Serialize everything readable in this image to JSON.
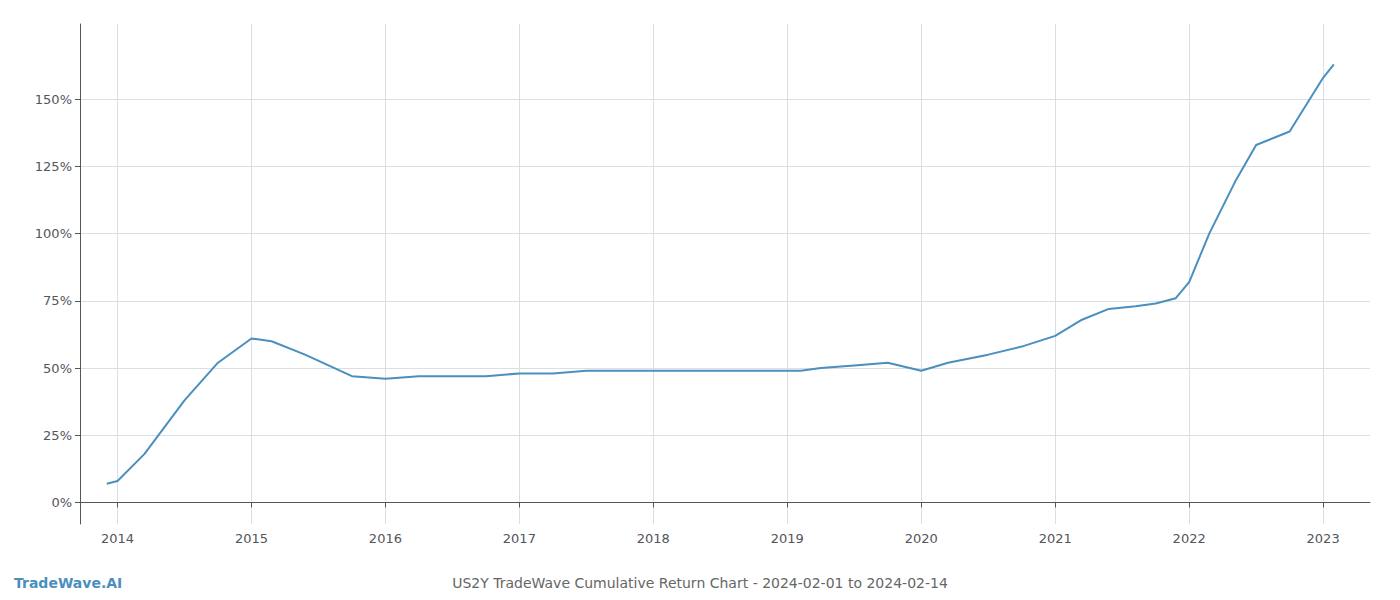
{
  "chart_data": {
    "type": "line",
    "title": "US2Y TradeWave Cumulative Return Chart - 2024-02-01 to 2024-02-14",
    "x": [
      2013.92,
      2014.0,
      2014.2,
      2014.5,
      2014.75,
      2015.0,
      2015.15,
      2015.4,
      2015.75,
      2016.0,
      2016.25,
      2016.5,
      2016.75,
      2017.0,
      2017.25,
      2017.5,
      2017.75,
      2018.0,
      2018.25,
      2018.5,
      2018.75,
      2019.0,
      2019.1,
      2019.25,
      2019.5,
      2019.75,
      2020.0,
      2020.2,
      2020.5,
      2020.75,
      2021.0,
      2021.2,
      2021.4,
      2021.6,
      2021.75,
      2021.9,
      2022.0,
      2022.15,
      2022.35,
      2022.5,
      2022.75,
      2023.0,
      2023.08
    ],
    "values": [
      7,
      8,
      18,
      38,
      52,
      61,
      60,
      55,
      47,
      46,
      47,
      47,
      47,
      48,
      48,
      49,
      49,
      49,
      49,
      49,
      49,
      49,
      49,
      50,
      51,
      52,
      49,
      52,
      55,
      58,
      62,
      68,
      72,
      73,
      74,
      76,
      82,
      100,
      120,
      133,
      138,
      158,
      163
    ],
    "color": "#4a8fbe",
    "xlim": [
      2013.72,
      2023.35
    ],
    "ylim": [
      -8,
      178
    ],
    "xticks": [
      2014,
      2015,
      2016,
      2017,
      2018,
      2019,
      2020,
      2021,
      2022,
      2023
    ],
    "yticks": [
      {
        "value": 0,
        "label": "0%"
      },
      {
        "value": 25,
        "label": "25%"
      },
      {
        "value": 50,
        "label": "50%"
      },
      {
        "value": 75,
        "label": "75%"
      },
      {
        "value": 100,
        "label": "100%"
      },
      {
        "value": 125,
        "label": "125%"
      },
      {
        "value": 150,
        "label": "150%"
      }
    ],
    "grid": true,
    "annotations": [
      {
        "text": "TradeWave.AI",
        "color": "#4a8fbe"
      }
    ]
  }
}
